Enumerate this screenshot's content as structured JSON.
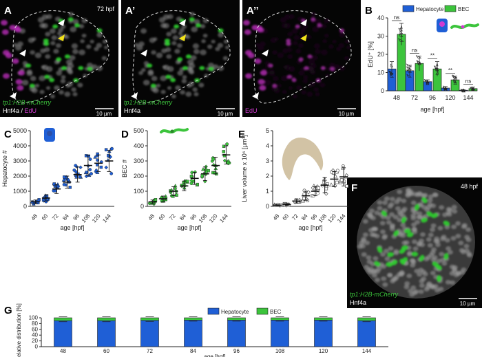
{
  "panels": {
    "A": {
      "letter": "A",
      "timepoint": "72 hpf",
      "label_line1": "tp1:H2B-mCherry",
      "label_hnf": "Hnf4a",
      "label_sep": " / ",
      "label_edu": "EdU",
      "scalebar": "10 µm"
    },
    "A1": {
      "letter": "A’",
      "label_line1": "tp1:H2B-mCherry",
      "label_line2": "Hnf4a",
      "scalebar": "10 µm"
    },
    "A2": {
      "letter": "A’’",
      "label_line1": "EdU",
      "scalebar": "10 µm"
    },
    "F": {
      "letter": "F",
      "timepoint": "48 hpf",
      "label_line1": "tp1:H2B-mCherry",
      "label_line2": "Hnf4a",
      "scalebar": "10 µm"
    }
  },
  "colors": {
    "hepatocyte": "#1f5fd6",
    "bec": "#3cc43c",
    "magenta": "#d03ad0",
    "liver": "#d2c3a5"
  },
  "chart_data": [
    {
      "id": "B",
      "letter": "B",
      "type": "bar",
      "categories": [
        "48",
        "72",
        "96",
        "120",
        "144"
      ],
      "series": [
        {
          "name": "Hepatocyte",
          "values": [
            12,
            11,
            5,
            1.5,
            0.3
          ],
          "err": [
            4,
            3,
            1,
            0.8,
            0.3
          ]
        },
        {
          "name": "BEC",
          "values": [
            31,
            15,
            12,
            6,
            1.2
          ],
          "err": [
            6,
            4,
            4,
            2,
            0.8
          ]
        }
      ],
      "ylim": [
        0,
        40
      ],
      "yticks": [
        "0",
        "10",
        "20",
        "30",
        "40"
      ],
      "ylabel": "EdU⁺ [%]",
      "xlabel": "age [hpf]",
      "significance": [
        "ns",
        "ns",
        "**",
        "**",
        "ns"
      ],
      "legend": [
        "Hepatocyte",
        "BEC"
      ]
    },
    {
      "id": "C",
      "letter": "C",
      "type": "scatter",
      "categories": [
        "48",
        "60",
        "72",
        "84",
        "96",
        "108",
        "120",
        "144"
      ],
      "means": [
        300,
        550,
        1150,
        1600,
        2100,
        2700,
        2850,
        3000
      ],
      "sd": [
        120,
        200,
        300,
        400,
        500,
        650,
        550,
        700
      ],
      "ylim": [
        0,
        5000
      ],
      "yticks": [
        "0",
        "1000",
        "2000",
        "3000",
        "4000",
        "5000"
      ],
      "ylabel": "Hepatocyte #",
      "xlabel": "age [hpf]"
    },
    {
      "id": "D",
      "letter": "D",
      "type": "scatter",
      "categories": [
        "48",
        "60",
        "72",
        "84",
        "96",
        "108",
        "120",
        "144"
      ],
      "means": [
        30,
        50,
        100,
        135,
        185,
        215,
        270,
        340
      ],
      "sd": [
        12,
        18,
        30,
        32,
        40,
        45,
        55,
        60
      ],
      "ylim": [
        0,
        500
      ],
      "yticks": [
        "0",
        "100",
        "200",
        "300",
        "400",
        "500"
      ],
      "ylabel": "BEC #",
      "xlabel": "age [hpf]"
    },
    {
      "id": "E",
      "letter": "E",
      "type": "scatter",
      "categories": [
        "48",
        "60",
        "72",
        "84",
        "96",
        "108",
        "120",
        "144"
      ],
      "means": [
        0.08,
        0.12,
        0.35,
        0.7,
        1.0,
        1.4,
        1.8,
        1.95
      ],
      "sd": [
        0.03,
        0.05,
        0.12,
        0.3,
        0.3,
        0.5,
        0.5,
        0.6
      ],
      "ylim": [
        0,
        5
      ],
      "yticks": [
        "0",
        "1",
        "2",
        "3",
        "4",
        "5"
      ],
      "ylabel": "Liver volume x 10⁶ [µm³]",
      "xlabel": "age [hpf]"
    },
    {
      "id": "G",
      "letter": "G",
      "type": "bar",
      "categories": [
        "48",
        "60",
        "72",
        "84",
        "96",
        "108",
        "120",
        "144"
      ],
      "series": [
        {
          "name": "Hepatocyte",
          "values": [
            90,
            90,
            91,
            92,
            92,
            92,
            92,
            90
          ]
        },
        {
          "name": "BEC",
          "values": [
            10,
            10,
            9,
            8,
            8,
            8,
            8,
            10
          ]
        }
      ],
      "ylim": [
        0,
        100
      ],
      "yticks": [
        "0",
        "20",
        "40",
        "60",
        "80",
        "100"
      ],
      "ylabel": "Relative distribution [%]",
      "xlabel": "age [hpf]",
      "legend": [
        "Hepatocyte",
        "BEC"
      ]
    }
  ]
}
